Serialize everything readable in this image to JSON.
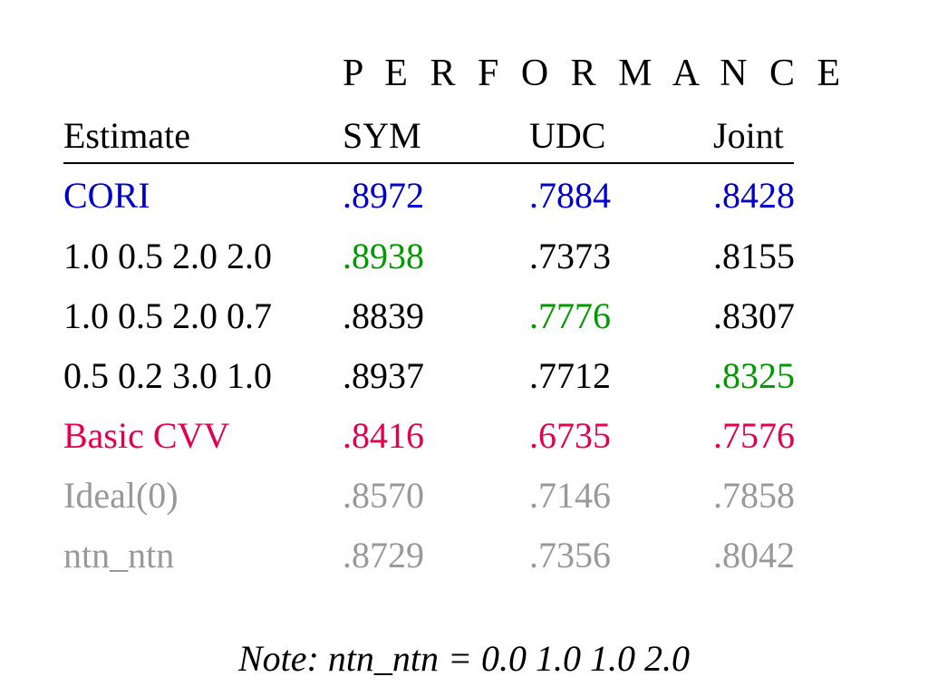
{
  "title": "P E R F O R M A N C E",
  "colors": {
    "black": "#000000",
    "blue": "#0000cc",
    "green": "#009900",
    "red": "#e6004c",
    "gray": "#999999"
  },
  "table": {
    "headers": [
      "Estimate",
      "SYM",
      "UDC",
      "Joint"
    ],
    "rows": [
      {
        "cells": [
          {
            "text": "CORI",
            "color": "#0000cc"
          },
          {
            "text": ".8972",
            "color": "#0000cc"
          },
          {
            "text": ".7884",
            "color": "#0000cc"
          },
          {
            "text": ".8428",
            "color": "#0000cc"
          }
        ]
      },
      {
        "cells": [
          {
            "text": "1.0 0.5 2.0 2.0",
            "color": "#000000"
          },
          {
            "text": ".8938",
            "color": "#009900"
          },
          {
            "text": ".7373",
            "color": "#000000"
          },
          {
            "text": ".8155",
            "color": "#000000"
          }
        ]
      },
      {
        "cells": [
          {
            "text": "1.0 0.5 2.0 0.7",
            "color": "#000000"
          },
          {
            "text": ".8839",
            "color": "#000000"
          },
          {
            "text": ".7776",
            "color": "#009900"
          },
          {
            "text": ".8307",
            "color": "#000000"
          }
        ]
      },
      {
        "cells": [
          {
            "text": "0.5 0.2 3.0 1.0",
            "color": "#000000"
          },
          {
            "text": ".8937",
            "color": "#000000"
          },
          {
            "text": ".7712",
            "color": "#000000"
          },
          {
            "text": ".8325",
            "color": "#009900"
          }
        ]
      },
      {
        "cells": [
          {
            "text": "Basic CVV",
            "color": "#e6004c"
          },
          {
            "text": ".8416",
            "color": "#e6004c"
          },
          {
            "text": ".6735",
            "color": "#e6004c"
          },
          {
            "text": ".7576",
            "color": "#e6004c"
          }
        ]
      },
      {
        "cells": [
          {
            "text": "Ideal(0)",
            "color": "#999999"
          },
          {
            "text": ".8570",
            "color": "#999999"
          },
          {
            "text": ".7146",
            "color": "#999999"
          },
          {
            "text": ".7858",
            "color": "#999999"
          }
        ]
      },
      {
        "cells": [
          {
            "text": "ntn_ntn",
            "color": "#999999"
          },
          {
            "text": ".8729",
            "color": "#999999"
          },
          {
            "text": ".7356",
            "color": "#999999"
          },
          {
            "text": ".8042",
            "color": "#999999"
          }
        ]
      }
    ]
  },
  "note": "Note: ntn_ntn = 0.0 1.0 1.0 2.0"
}
